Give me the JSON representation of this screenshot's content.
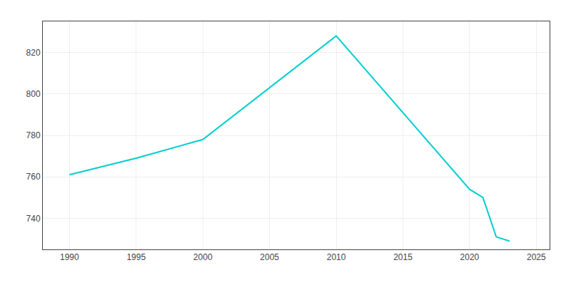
{
  "chart_data": {
    "type": "line",
    "x": [
      1990,
      1995,
      2000,
      2010,
      2020,
      2021,
      2022,
      2023
    ],
    "values": [
      761,
      769,
      778,
      828,
      754,
      750,
      731,
      729
    ],
    "color": "#00CED1",
    "xlim": [
      1988,
      2026
    ],
    "xticks": [
      1990,
      1995,
      2000,
      2005,
      2010,
      2015,
      2020,
      2025
    ],
    "ylim": [
      725,
      835
    ],
    "yticks": [
      740,
      760,
      780,
      800,
      820
    ],
    "grid": true
  }
}
